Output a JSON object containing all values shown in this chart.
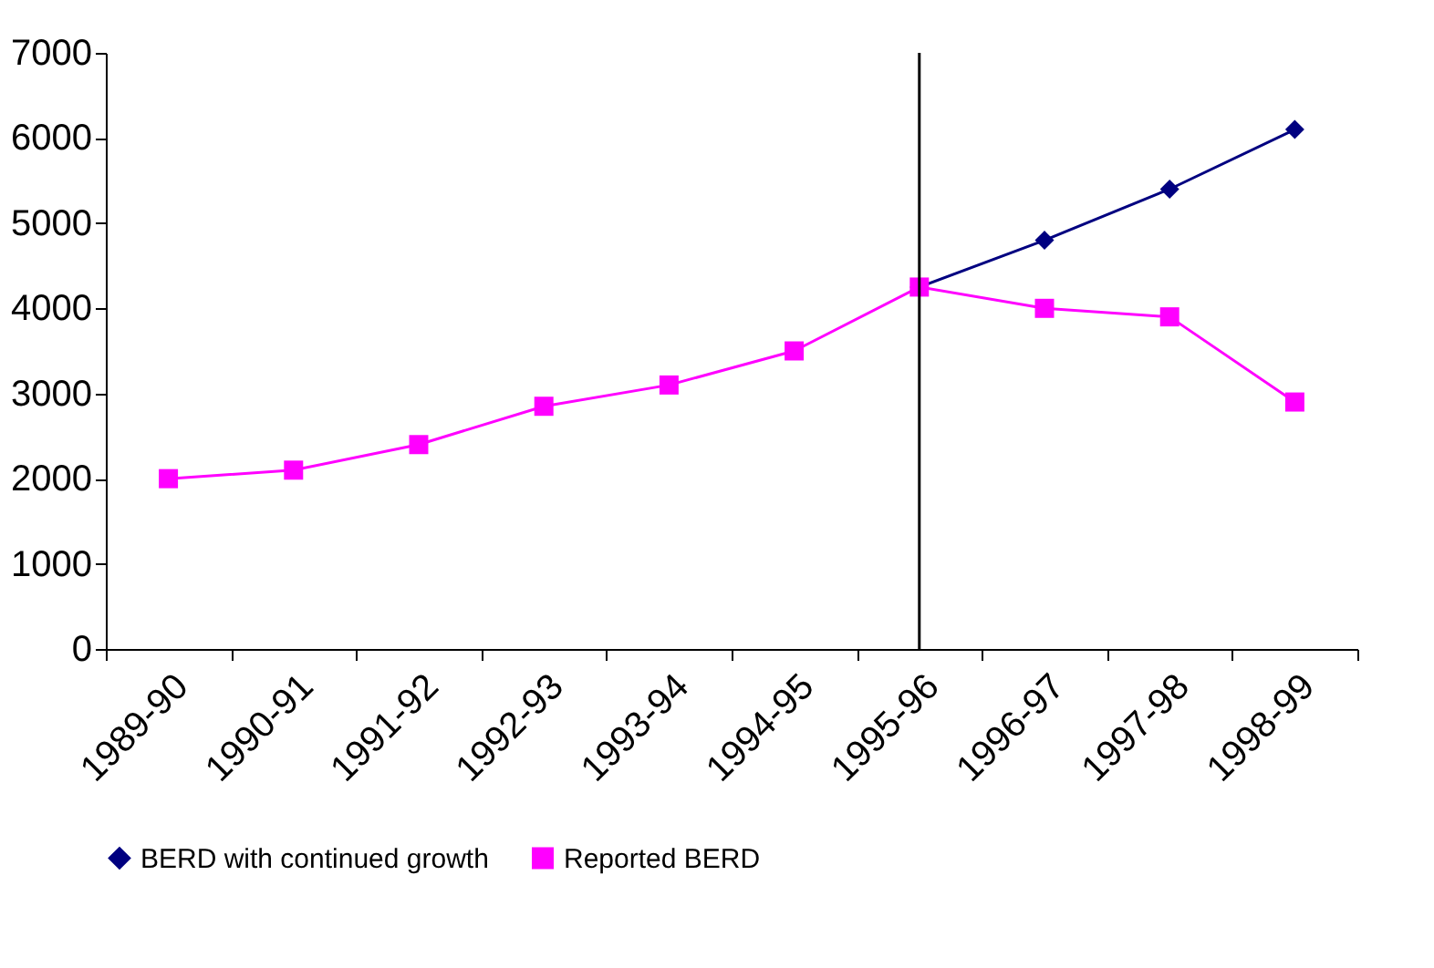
{
  "chart_data": {
    "type": "line",
    "categories": [
      "1989-90",
      "1990-91",
      "1991-92",
      "1992-93",
      "1993-94",
      "1994-95",
      "1995-96",
      "1996-97",
      "1997-98",
      "1998-99"
    ],
    "series": [
      {
        "name": "BERD with continued growth",
        "color": "#000080",
        "marker": "diamond",
        "values": [
          null,
          null,
          null,
          null,
          null,
          null,
          4250,
          4800,
          5400,
          6100
        ]
      },
      {
        "name": "Reported BERD",
        "color": "#ff00ff",
        "marker": "square",
        "values": [
          2000,
          2100,
          2400,
          2850,
          3100,
          3500,
          4250,
          4000,
          3900,
          2900
        ]
      }
    ],
    "ylim": [
      0,
      7000
    ],
    "yticks": [
      0,
      1000,
      2000,
      3000,
      4000,
      5000,
      6000,
      7000
    ],
    "grid": false,
    "legend": "bottom",
    "line_style": "solid",
    "ref_lines": [
      {
        "axis": "x",
        "value": "1995-96",
        "color": "#000000"
      }
    ]
  }
}
